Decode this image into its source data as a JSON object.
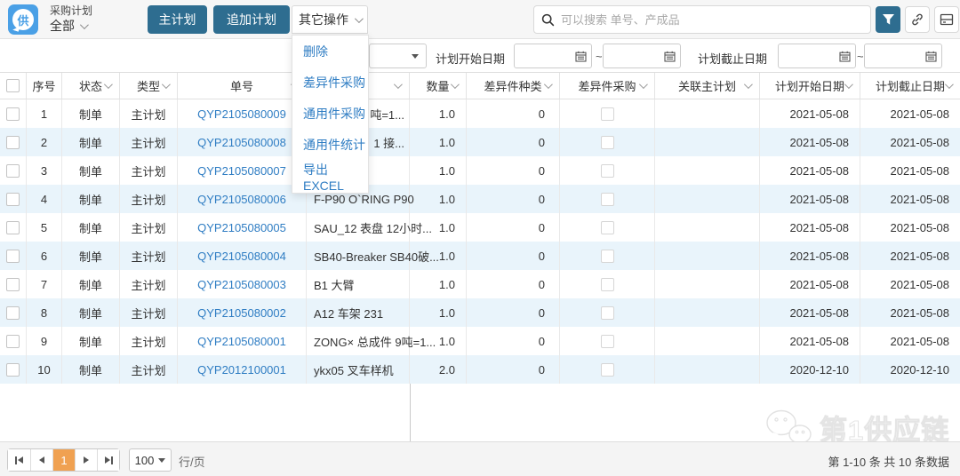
{
  "topbar": {
    "logo_text": "供",
    "module_title": "采购计划",
    "scope": "全部",
    "main_plan_button": "主计划",
    "append_plan_button": "追加计划",
    "other_ops_button": "其它操作",
    "search_placeholder": "可以搜索 单号、产成品"
  },
  "menu": {
    "items": [
      "删除",
      "差异件采购",
      "通用件采购",
      "通用件统计",
      "导出EXCEL"
    ]
  },
  "filterbar": {
    "start_label": "计划开始日期",
    "end_label": "计划截止日期",
    "tilde": "~",
    "start_from": "",
    "start_to": "",
    "end_from": "",
    "end_to": ""
  },
  "table": {
    "columns": [
      {
        "key": "select",
        "label": "",
        "sortable": false
      },
      {
        "key": "no",
        "label": "序号",
        "sortable": false
      },
      {
        "key": "status",
        "label": "状态",
        "sortable": true
      },
      {
        "key": "type",
        "label": "类型",
        "sortable": true
      },
      {
        "key": "order_no",
        "label": "单号",
        "sortable": true
      },
      {
        "key": "product",
        "label": "",
        "sortable": true
      },
      {
        "key": "qty",
        "label": "数量",
        "sortable": true
      },
      {
        "key": "diff_kinds",
        "label": "差异件种类",
        "sortable": true
      },
      {
        "key": "diff_purchase",
        "label": "差异件采购",
        "sortable": true
      },
      {
        "key": "related_plan",
        "label": "关联主计划",
        "sortable": true
      },
      {
        "key": "start_date",
        "label": "计划开始日期",
        "sortable": true
      },
      {
        "key": "end_date",
        "label": "计划截止日期",
        "sortable": true
      }
    ],
    "rows": [
      {
        "no": "1",
        "status": "制单",
        "type": "主计划",
        "order_no": "QYP2105080009",
        "product": "吨=1...",
        "qty": "1.0",
        "diff_kinds": "0",
        "related_plan": "",
        "start_date": "2021-05-08",
        "end_date": "2021-05-08"
      },
      {
        "no": "2",
        "status": "制单",
        "type": "主计划",
        "order_no": "QYP2105080008",
        "product": "1 接...",
        "qty": "1.0",
        "diff_kinds": "0",
        "related_plan": "",
        "start_date": "2021-05-08",
        "end_date": "2021-05-08"
      },
      {
        "no": "3",
        "status": "制单",
        "type": "主计划",
        "order_no": "QYP2105080007",
        "product": "",
        "qty": "1.0",
        "diff_kinds": "0",
        "related_plan": "",
        "start_date": "2021-05-08",
        "end_date": "2021-05-08"
      },
      {
        "no": "4",
        "status": "制单",
        "type": "主计划",
        "order_no": "QYP2105080006",
        "product": "F-P90 O`RING P90",
        "qty": "1.0",
        "diff_kinds": "0",
        "related_plan": "",
        "start_date": "2021-05-08",
        "end_date": "2021-05-08"
      },
      {
        "no": "5",
        "status": "制单",
        "type": "主计划",
        "order_no": "QYP2105080005",
        "product": "SAU_12 表盘 12小时...",
        "qty": "1.0",
        "diff_kinds": "0",
        "related_plan": "",
        "start_date": "2021-05-08",
        "end_date": "2021-05-08"
      },
      {
        "no": "6",
        "status": "制单",
        "type": "主计划",
        "order_no": "QYP2105080004",
        "product": "SB40-Breaker SB40破...",
        "qty": "1.0",
        "diff_kinds": "0",
        "related_plan": "",
        "start_date": "2021-05-08",
        "end_date": "2021-05-08"
      },
      {
        "no": "7",
        "status": "制单",
        "type": "主计划",
        "order_no": "QYP2105080003",
        "product": "B1 大臂",
        "qty": "1.0",
        "diff_kinds": "0",
        "related_plan": "",
        "start_date": "2021-05-08",
        "end_date": "2021-05-08"
      },
      {
        "no": "8",
        "status": "制单",
        "type": "主计划",
        "order_no": "QYP2105080002",
        "product": "A12 车架 231",
        "qty": "1.0",
        "diff_kinds": "0",
        "related_plan": "",
        "start_date": "2021-05-08",
        "end_date": "2021-05-08"
      },
      {
        "no": "9",
        "status": "制单",
        "type": "主计划",
        "order_no": "QYP2105080001",
        "product": "ZONG× 总成件 9吨=1...",
        "qty": "1.0",
        "diff_kinds": "0",
        "related_plan": "",
        "start_date": "2021-05-08",
        "end_date": "2021-05-08"
      },
      {
        "no": "10",
        "status": "制单",
        "type": "主计划",
        "order_no": "QYP2012100001",
        "product": "ykx05 叉车样机",
        "qty": "2.0",
        "diff_kinds": "0",
        "related_plan": "",
        "start_date": "2020-12-10",
        "end_date": "2020-12-10"
      }
    ]
  },
  "pagination": {
    "current_page": "1",
    "page_size": "100",
    "rows_per_page_label": "行/页",
    "summary": "第 1-10 条 共 10 条数据"
  },
  "watermark": {
    "text": "第1供应链"
  },
  "colors": {
    "accent": "#2e6d90",
    "link": "#2f7dc3",
    "stripe": "#e9f4fb",
    "active_page": "#f0a151",
    "logo": "#4aa0e6"
  }
}
